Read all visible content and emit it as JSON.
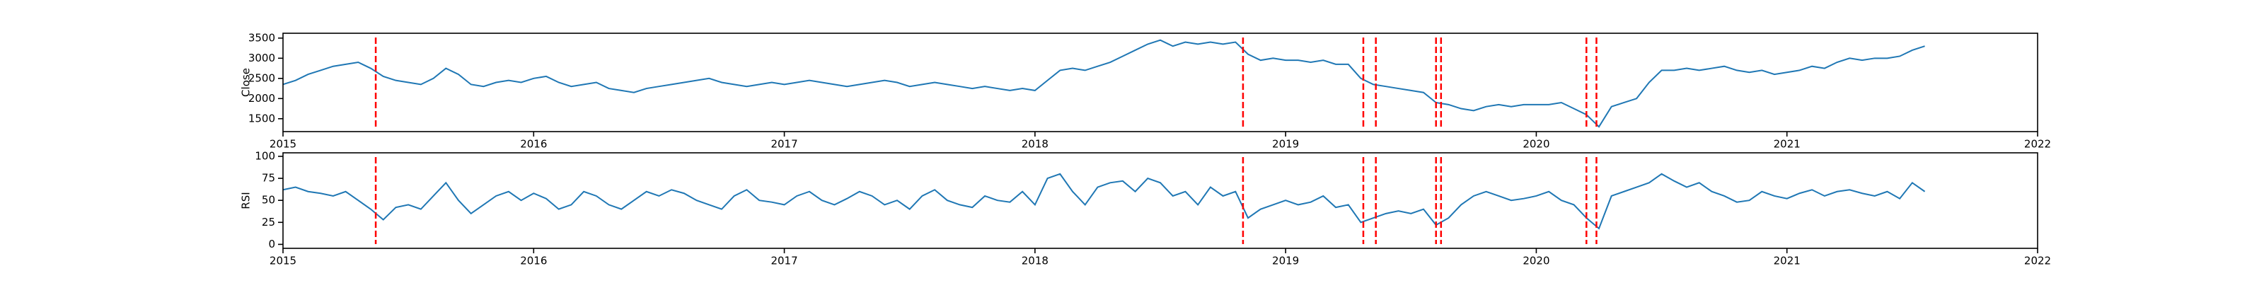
{
  "chart_data": [
    {
      "type": "line",
      "ylabel": "Close",
      "color": "#1f77b4",
      "x": [
        2015,
        2015.05,
        2015.1,
        2015.15,
        2015.2,
        2015.25,
        2015.3,
        2015.35,
        2015.4,
        2015.45,
        2015.5,
        2015.55,
        2015.6,
        2015.65,
        2015.7,
        2015.75,
        2015.8,
        2015.85,
        2015.9,
        2015.95,
        2016,
        2016.05,
        2016.1,
        2016.15,
        2016.2,
        2016.25,
        2016.3,
        2016.35,
        2016.4,
        2016.45,
        2016.5,
        2016.55,
        2016.6,
        2016.65,
        2016.7,
        2016.75,
        2016.8,
        2016.85,
        2016.9,
        2016.95,
        2017,
        2017.05,
        2017.1,
        2017.15,
        2017.2,
        2017.25,
        2017.3,
        2017.35,
        2017.4,
        2017.45,
        2017.5,
        2017.55,
        2017.6,
        2017.65,
        2017.7,
        2017.75,
        2017.8,
        2017.85,
        2017.9,
        2017.95,
        2018,
        2018.05,
        2018.1,
        2018.15,
        2018.2,
        2018.25,
        2018.3,
        2018.35,
        2018.4,
        2018.45,
        2018.5,
        2018.55,
        2018.6,
        2018.65,
        2018.7,
        2018.75,
        2018.8,
        2018.85,
        2018.9,
        2018.95,
        2019,
        2019.05,
        2019.1,
        2019.15,
        2019.2,
        2019.25,
        2019.3,
        2019.35,
        2019.4,
        2019.45,
        2019.5,
        2019.55,
        2019.6,
        2019.65,
        2019.7,
        2019.75,
        2019.8,
        2019.85,
        2019.9,
        2019.95,
        2020,
        2020.05,
        2020.1,
        2020.15,
        2020.2,
        2020.25,
        2020.3,
        2020.35,
        2020.4,
        2020.45,
        2020.5,
        2020.55,
        2020.6,
        2020.65,
        2020.7,
        2020.75,
        2020.8,
        2020.85,
        2020.9,
        2020.95,
        2021,
        2021.05,
        2021.1,
        2021.15,
        2021.2,
        2021.25,
        2021.3,
        2021.35,
        2021.4,
        2021.45,
        2021.5,
        2021.55
      ],
      "values": [
        2350,
        2450,
        2600,
        2700,
        2800,
        2850,
        2900,
        2750,
        2550,
        2450,
        2400,
        2350,
        2500,
        2750,
        2600,
        2350,
        2300,
        2400,
        2450,
        2400,
        2500,
        2550,
        2400,
        2300,
        2350,
        2400,
        2250,
        2200,
        2150,
        2250,
        2300,
        2350,
        2400,
        2450,
        2500,
        2400,
        2350,
        2300,
        2350,
        2400,
        2350,
        2400,
        2450,
        2400,
        2350,
        2300,
        2350,
        2400,
        2450,
        2400,
        2300,
        2350,
        2400,
        2350,
        2300,
        2250,
        2300,
        2250,
        2200,
        2250,
        2200,
        2450,
        2700,
        2750,
        2700,
        2800,
        2900,
        3050,
        3200,
        3350,
        3450,
        3300,
        3400,
        3350,
        3400,
        3350,
        3400,
        3100,
        2950,
        3000,
        2950,
        2950,
        2900,
        2950,
        2850,
        2850,
        2500,
        2350,
        2300,
        2250,
        2200,
        2150,
        1900,
        1850,
        1750,
        1700,
        1800,
        1850,
        1800,
        1850,
        1850,
        1850,
        1900,
        1750,
        1600,
        1300,
        1800,
        1900,
        2000,
        2400,
        2700,
        2700,
        2750,
        2700,
        2750,
        2800,
        2700,
        2650,
        2700,
        2600,
        2650,
        2700,
        2800,
        2750,
        2900,
        3000,
        2950,
        3000,
        3000,
        3050,
        3200,
        3300
      ],
      "xlim": [
        2015,
        2022
      ],
      "xticks": [
        2015,
        2016,
        2017,
        2018,
        2019,
        2020,
        2021,
        2022
      ],
      "ylim": [
        1180,
        3620
      ],
      "yticks": [
        1500,
        2000,
        2500,
        3000,
        3500
      ],
      "vlines": [
        2015.37,
        2018.83,
        2019.31,
        2019.36,
        2019.6,
        2019.62,
        2020.2,
        2020.24
      ],
      "vline_color": "#ff0000"
    },
    {
      "type": "line",
      "ylabel": "RSI",
      "color": "#1f77b4",
      "x": [
        2015,
        2015.05,
        2015.1,
        2015.15,
        2015.2,
        2015.25,
        2015.3,
        2015.35,
        2015.4,
        2015.45,
        2015.5,
        2015.55,
        2015.6,
        2015.65,
        2015.7,
        2015.75,
        2015.8,
        2015.85,
        2015.9,
        2015.95,
        2016,
        2016.05,
        2016.1,
        2016.15,
        2016.2,
        2016.25,
        2016.3,
        2016.35,
        2016.4,
        2016.45,
        2016.5,
        2016.55,
        2016.6,
        2016.65,
        2016.7,
        2016.75,
        2016.8,
        2016.85,
        2016.9,
        2016.95,
        2017,
        2017.05,
        2017.1,
        2017.15,
        2017.2,
        2017.25,
        2017.3,
        2017.35,
        2017.4,
        2017.45,
        2017.5,
        2017.55,
        2017.6,
        2017.65,
        2017.7,
        2017.75,
        2017.8,
        2017.85,
        2017.9,
        2017.95,
        2018,
        2018.05,
        2018.1,
        2018.15,
        2018.2,
        2018.25,
        2018.3,
        2018.35,
        2018.4,
        2018.45,
        2018.5,
        2018.55,
        2018.6,
        2018.65,
        2018.7,
        2018.75,
        2018.8,
        2018.85,
        2018.9,
        2018.95,
        2019,
        2019.05,
        2019.1,
        2019.15,
        2019.2,
        2019.25,
        2019.3,
        2019.35,
        2019.4,
        2019.45,
        2019.5,
        2019.55,
        2019.6,
        2019.65,
        2019.7,
        2019.75,
        2019.8,
        2019.85,
        2019.9,
        2019.95,
        2020,
        2020.05,
        2020.1,
        2020.15,
        2020.2,
        2020.25,
        2020.3,
        2020.35,
        2020.4,
        2020.45,
        2020.5,
        2020.55,
        2020.6,
        2020.65,
        2020.7,
        2020.75,
        2020.8,
        2020.85,
        2020.9,
        2020.95,
        2021,
        2021.05,
        2021.1,
        2021.15,
        2021.2,
        2021.25,
        2021.3,
        2021.35,
        2021.4,
        2021.45,
        2021.5,
        2021.55
      ],
      "values": [
        62,
        65,
        60,
        58,
        55,
        60,
        50,
        40,
        28,
        42,
        45,
        40,
        55,
        70,
        50,
        35,
        45,
        55,
        60,
        50,
        58,
        52,
        40,
        45,
        60,
        55,
        45,
        40,
        50,
        60,
        55,
        62,
        58,
        50,
        45,
        40,
        55,
        62,
        50,
        48,
        45,
        55,
        60,
        50,
        45,
        52,
        60,
        55,
        45,
        50,
        40,
        55,
        62,
        50,
        45,
        42,
        55,
        50,
        48,
        60,
        45,
        75,
        80,
        60,
        45,
        65,
        70,
        72,
        60,
        75,
        70,
        55,
        60,
        45,
        65,
        55,
        60,
        30,
        40,
        45,
        50,
        45,
        48,
        55,
        42,
        45,
        25,
        30,
        35,
        38,
        35,
        40,
        22,
        30,
        45,
        55,
        60,
        55,
        50,
        52,
        55,
        60,
        50,
        45,
        30,
        18,
        55,
        60,
        65,
        70,
        80,
        72,
        65,
        70,
        60,
        55,
        48,
        50,
        60,
        55,
        52,
        58,
        62,
        55,
        60,
        62,
        58,
        55,
        60,
        52,
        70,
        60
      ],
      "xlim": [
        2015,
        2022
      ],
      "xticks": [
        2015,
        2016,
        2017,
        2018,
        2019,
        2020,
        2021,
        2022
      ],
      "ylim": [
        -4.5,
        104
      ],
      "yticks": [
        0,
        25,
        50,
        75,
        100
      ],
      "vlines": [
        2015.37,
        2018.83,
        2019.31,
        2019.36,
        2019.6,
        2019.62,
        2020.2,
        2020.24
      ],
      "vline_color": "#ff0000"
    }
  ]
}
